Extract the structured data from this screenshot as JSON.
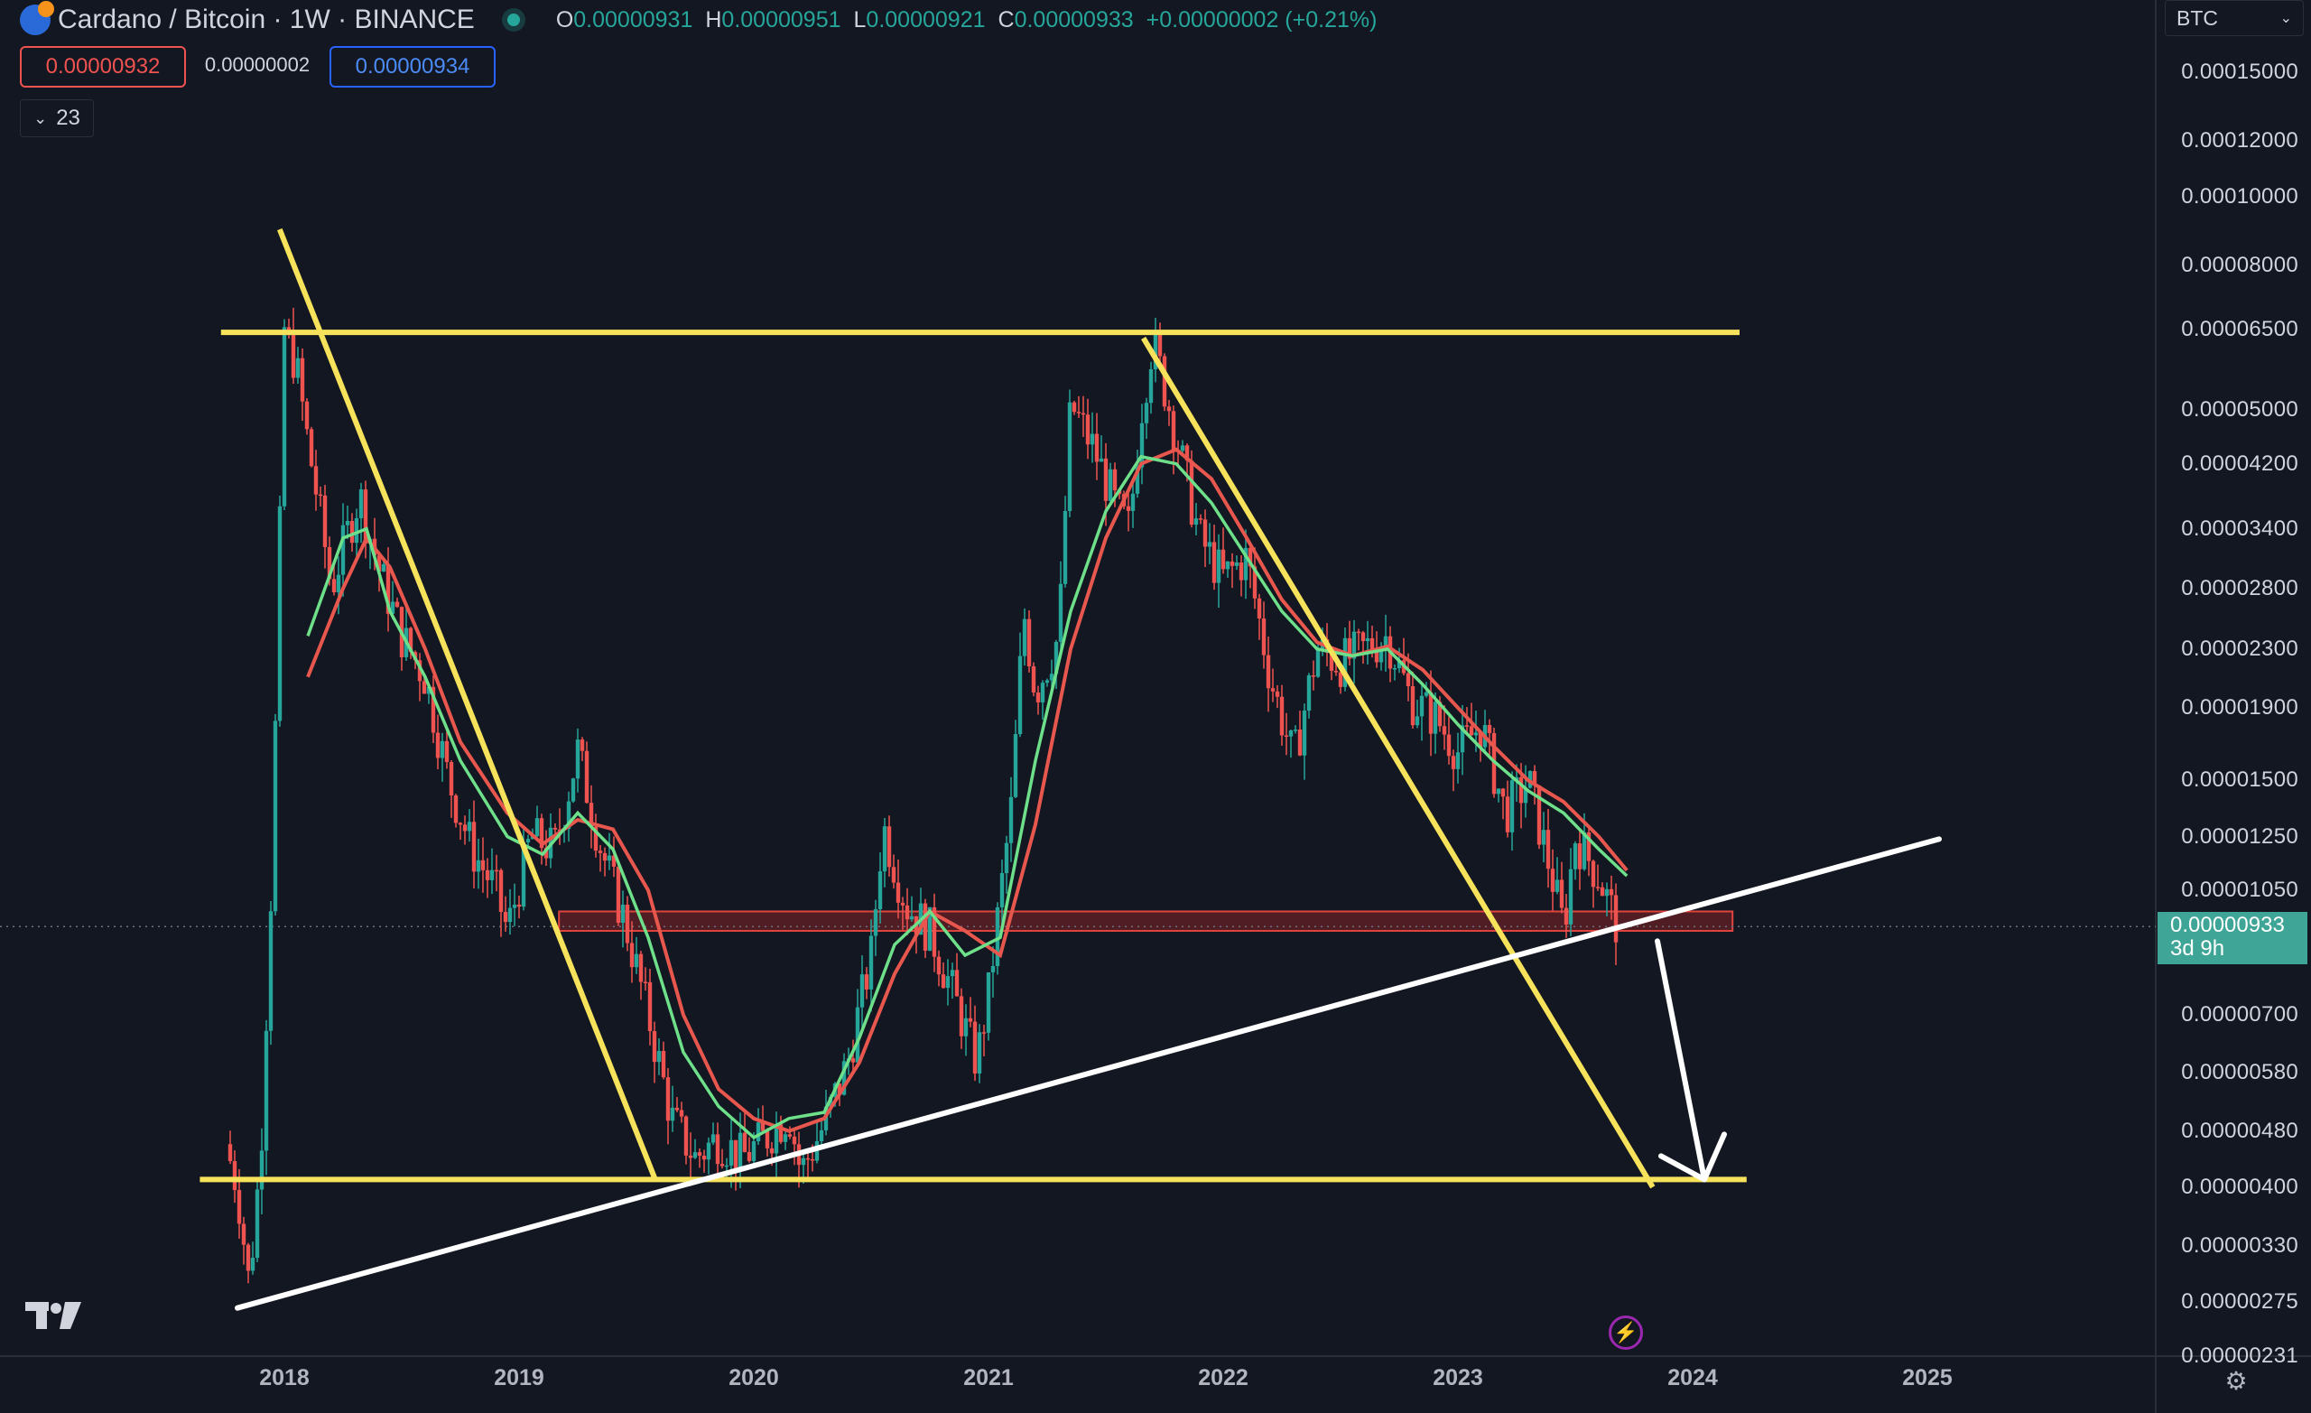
{
  "header": {
    "symbol_title": "Cardano / Bitcoin · 1W · BINANCE",
    "ohlc": [
      {
        "key": "O",
        "value": "0.00000931"
      },
      {
        "key": "H",
        "value": "0.00000951"
      },
      {
        "key": "L",
        "value": "0.00000921"
      },
      {
        "key": "C",
        "value": "0.00000933"
      }
    ],
    "change": "+0.00000002 (+0.21%)",
    "currency_select": "BTC"
  },
  "quote": {
    "sell": "0.00000932",
    "spread": "0.00000002",
    "buy": "0.00000934"
  },
  "indicators_toggle": "23",
  "price_label": {
    "price": "0.00000933",
    "countdown": "3d 9h"
  },
  "logo_text": "TV",
  "colors": {
    "background": "#131722",
    "up": "#26a69a",
    "down": "#ef5350",
    "channel": "#f7e35b",
    "trendline": "#ffffff",
    "ma_fast": "#6fe08a",
    "ma_slow": "#e8574d",
    "zone": "#c62828"
  },
  "chart_data": {
    "type": "candlestick",
    "title": "Cardano / Bitcoin · 1W · BINANCE",
    "y_scale": "log",
    "y_ticks": [
      "0.00015000",
      "0.00012000",
      "0.00010000",
      "0.00008000",
      "0.00006500",
      "0.00005000",
      "0.00004200",
      "0.00003400",
      "0.00002800",
      "0.00002300",
      "0.00001900",
      "0.00001500",
      "0.00001250",
      "0.00001050",
      "0.00000700",
      "0.00000580",
      "0.00000480",
      "0.00000400",
      "0.00000330",
      "0.00000275",
      "0.00000231"
    ],
    "x_ticks": [
      "2018",
      "2019",
      "2020",
      "2021",
      "2022",
      "2023",
      "2024",
      "2025"
    ],
    "ylim": [
      2.3e-06,
      0.000165
    ],
    "xlim": [
      2017.11,
      2025.87
    ],
    "price_series": [
      [
        2017.75,
        4.6e-06
      ],
      [
        2017.8,
        4e-06
      ],
      [
        2017.85,
        2.9e-06
      ],
      [
        2017.9,
        4.5e-06
      ],
      [
        2017.95,
        1.2e-05
      ],
      [
        2018.0,
        6.5e-05
      ],
      [
        2018.05,
        5.8e-05
      ],
      [
        2018.1,
        4.5e-05
      ],
      [
        2018.15,
        3.6e-05
      ],
      [
        2018.2,
        2.8e-05
      ],
      [
        2018.25,
        3.2e-05
      ],
      [
        2018.32,
        3.8e-05
      ],
      [
        2018.4,
        3e-05
      ],
      [
        2018.5,
        2.4e-05
      ],
      [
        2018.6,
        2.1e-05
      ],
      [
        2018.7,
        1.5e-05
      ],
      [
        2018.8,
        1.2e-05
      ],
      [
        2018.9,
        1.05e-05
      ],
      [
        2018.95,
        9.2e-06
      ],
      [
        2019.05,
        1.25e-05
      ],
      [
        2019.15,
        1.2e-05
      ],
      [
        2019.25,
        1.65e-05
      ],
      [
        2019.35,
        1.2e-05
      ],
      [
        2019.45,
        9.5e-06
      ],
      [
        2019.55,
        7e-06
      ],
      [
        2019.65,
        5e-06
      ],
      [
        2019.75,
        4.4e-06
      ],
      [
        2019.85,
        4.7e-06
      ],
      [
        2019.95,
        4.4e-06
      ],
      [
        2020.05,
        4.7e-06
      ],
      [
        2020.15,
        5.1e-06
      ],
      [
        2020.2,
        4.2e-06
      ],
      [
        2020.3,
        4.9e-06
      ],
      [
        2020.4,
        6e-06
      ],
      [
        2020.5,
        8.5e-06
      ],
      [
        2020.55,
        1.3e-05
      ],
      [
        2020.65,
        1e-05
      ],
      [
        2020.75,
        9.2e-06
      ],
      [
        2020.85,
        7.5e-06
      ],
      [
        2020.95,
        6e-06
      ],
      [
        2021.0,
        7.5e-06
      ],
      [
        2021.1,
        1.4e-05
      ],
      [
        2021.15,
        2.6e-05
      ],
      [
        2021.2,
        2e-05
      ],
      [
        2021.3,
        2.4e-05
      ],
      [
        2021.35,
        5.1e-05
      ],
      [
        2021.45,
        4.4e-05
      ],
      [
        2021.55,
        3.6e-05
      ],
      [
        2021.6,
        3.4e-05
      ],
      [
        2021.65,
        5e-05
      ],
      [
        2021.7,
        6.3e-05
      ],
      [
        2021.8,
        4.6e-05
      ],
      [
        2021.9,
        3.3e-05
      ],
      [
        2022.0,
        2.9e-05
      ],
      [
        2022.1,
        3.1e-05
      ],
      [
        2022.2,
        2.1e-05
      ],
      [
        2022.3,
        1.6e-05
      ],
      [
        2022.4,
        2.3e-05
      ],
      [
        2022.5,
        2.2e-05
      ],
      [
        2022.6,
        2.3e-05
      ],
      [
        2022.7,
        2.4e-05
      ],
      [
        2022.8,
        1.95e-05
      ],
      [
        2022.9,
        1.85e-05
      ],
      [
        2023.0,
        1.65e-05
      ],
      [
        2023.1,
        1.8e-05
      ],
      [
        2023.2,
        1.35e-05
      ],
      [
        2023.3,
        1.5e-05
      ],
      [
        2023.4,
        1.1e-05
      ],
      [
        2023.45,
        9.3e-06
      ],
      [
        2023.5,
        1.25e-05
      ],
      [
        2023.6,
        1.1e-05
      ],
      [
        2023.68,
        9.33e-06
      ]
    ],
    "ma_fast": [
      [
        2018.1,
        2.4e-05
      ],
      [
        2018.25,
        3.3e-05
      ],
      [
        2018.35,
        3.4e-05
      ],
      [
        2018.45,
        2.6e-05
      ],
      [
        2018.6,
        2.1e-05
      ],
      [
        2018.75,
        1.6e-05
      ],
      [
        2018.95,
        1.25e-05
      ],
      [
        2019.1,
        1.18e-05
      ],
      [
        2019.25,
        1.35e-05
      ],
      [
        2019.4,
        1.2e-05
      ],
      [
        2019.55,
        9e-06
      ],
      [
        2019.7,
        6.2e-06
      ],
      [
        2019.85,
        5.2e-06
      ],
      [
        2020.0,
        4.7e-06
      ],
      [
        2020.15,
        5e-06
      ],
      [
        2020.3,
        5.1e-06
      ],
      [
        2020.45,
        6.5e-06
      ],
      [
        2020.6,
        8.8e-06
      ],
      [
        2020.75,
        9.8e-06
      ],
      [
        2020.9,
        8.5e-06
      ],
      [
        2021.05,
        9e-06
      ],
      [
        2021.2,
        1.6e-05
      ],
      [
        2021.35,
        2.6e-05
      ],
      [
        2021.5,
        3.6e-05
      ],
      [
        2021.65,
        4.3e-05
      ],
      [
        2021.8,
        4.2e-05
      ],
      [
        2021.95,
        3.7e-05
      ],
      [
        2022.1,
        3.1e-05
      ],
      [
        2022.25,
        2.6e-05
      ],
      [
        2022.4,
        2.3e-05
      ],
      [
        2022.55,
        2.25e-05
      ],
      [
        2022.7,
        2.3e-05
      ],
      [
        2022.85,
        2.05e-05
      ],
      [
        2023.0,
        1.8e-05
      ],
      [
        2023.15,
        1.6e-05
      ],
      [
        2023.3,
        1.45e-05
      ],
      [
        2023.45,
        1.35e-05
      ],
      [
        2023.6,
        1.2e-05
      ],
      [
        2023.72,
        1.1e-05
      ]
    ],
    "ma_slow": [
      [
        2018.1,
        2.1e-05
      ],
      [
        2018.25,
        2.8e-05
      ],
      [
        2018.35,
        3.3e-05
      ],
      [
        2018.45,
        3e-05
      ],
      [
        2018.6,
        2.3e-05
      ],
      [
        2018.75,
        1.7e-05
      ],
      [
        2018.95,
        1.35e-05
      ],
      [
        2019.1,
        1.22e-05
      ],
      [
        2019.25,
        1.32e-05
      ],
      [
        2019.4,
        1.28e-05
      ],
      [
        2019.55,
        1.05e-05
      ],
      [
        2019.7,
        7e-06
      ],
      [
        2019.85,
        5.5e-06
      ],
      [
        2020.0,
        5e-06
      ],
      [
        2020.15,
        4.8e-06
      ],
      [
        2020.3,
        5e-06
      ],
      [
        2020.45,
        6e-06
      ],
      [
        2020.6,
        8e-06
      ],
      [
        2020.75,
        9.8e-06
      ],
      [
        2020.9,
        9.2e-06
      ],
      [
        2021.05,
        8.5e-06
      ],
      [
        2021.2,
        1.3e-05
      ],
      [
        2021.35,
        2.3e-05
      ],
      [
        2021.5,
        3.3e-05
      ],
      [
        2021.65,
        4.2e-05
      ],
      [
        2021.8,
        4.4e-05
      ],
      [
        2021.95,
        4e-05
      ],
      [
        2022.1,
        3.3e-05
      ],
      [
        2022.25,
        2.7e-05
      ],
      [
        2022.4,
        2.35e-05
      ],
      [
        2022.55,
        2.25e-05
      ],
      [
        2022.7,
        2.32e-05
      ],
      [
        2022.85,
        2.15e-05
      ],
      [
        2023.0,
        1.9e-05
      ],
      [
        2023.15,
        1.68e-05
      ],
      [
        2023.3,
        1.5e-05
      ],
      [
        2023.45,
        1.4e-05
      ],
      [
        2023.6,
        1.25e-05
      ],
      [
        2023.72,
        1.12e-05
      ]
    ],
    "horizontal_levels": [
      6.44e-05,
      4.1e-06
    ],
    "support_zone": [
      9.2e-06,
      9.8e-06
    ],
    "channel_lines": [
      {
        "from": [
          2017.98,
          9e-05
        ],
        "to": [
          2019.58,
          4.1e-06
        ]
      },
      {
        "from": [
          2021.66,
          6.32e-05
        ],
        "to": [
          2023.83,
          4e-06
        ]
      }
    ],
    "trendline": {
      "from": [
        2017.8,
        2.7e-06
      ],
      "to": [
        2025.05,
        1.24e-05
      ]
    },
    "arrow": {
      "from": [
        2023.85,
        8.9e-06
      ],
      "to": [
        2024.05,
        4.1e-06
      ]
    }
  }
}
